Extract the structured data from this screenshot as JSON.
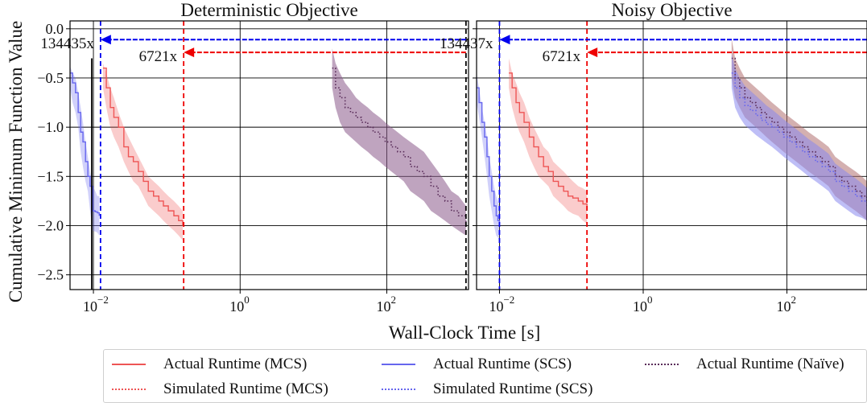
{
  "chart_data": [
    {
      "type": "line",
      "title": "Deterministic Objective",
      "xscale": "log",
      "xlim": [
        0.0048,
        1300
      ],
      "ylim": [
        -2.65,
        0.08
      ],
      "grid": true,
      "xticks": [
        {
          "base": "10",
          "exp": "−2",
          "value": 0.01
        },
        {
          "base": "10",
          "exp": "0",
          "value": 1
        },
        {
          "base": "10",
          "exp": "2",
          "value": 100
        }
      ],
      "yticks": [
        {
          "label": "0.0",
          "value": 0
        },
        {
          "label": "−0.5",
          "value": -0.5
        },
        {
          "label": "−1.0",
          "value": -1.0
        },
        {
          "label": "−1.5",
          "value": -1.5
        },
        {
          "label": "−2.0",
          "value": -2.0
        },
        {
          "label": "−2.5",
          "value": -2.5
        }
      ],
      "vlines": [
        {
          "x": 0.0095,
          "color": "#000000",
          "style": "solid",
          "ymin": -2.65,
          "ymax": -0.3
        },
        {
          "x": 0.0125,
          "color": "#0000ee",
          "style": "dashed"
        },
        {
          "x": 0.17,
          "color": "#ee0000",
          "style": "dashed"
        },
        {
          "x": 1200,
          "color": "#000000",
          "style": "dashed"
        }
      ],
      "arrows": [
        {
          "label": "134435x",
          "from": 1200,
          "to": 0.0125,
          "y": -0.11,
          "color": "#0000ee"
        },
        {
          "label": "6721x",
          "from": 1200,
          "to": 0.17,
          "y": -0.24,
          "color": "#ee0000"
        }
      ],
      "series": [
        {
          "name": "Actual Runtime (SCS)",
          "color": "#6666ee",
          "style": "solid",
          "x": [
            0.0048,
            0.0052,
            0.0057,
            0.0062,
            0.0067,
            0.0072,
            0.0078,
            0.0084,
            0.009,
            0.0098,
            0.0106,
            0.0113,
            0.012
          ],
          "y": [
            -0.45,
            -0.55,
            -0.65,
            -0.85,
            -1.05,
            -1.15,
            -1.35,
            -1.5,
            -1.6,
            -1.85,
            -1.86,
            -1.87,
            -1.9
          ],
          "lo": [
            -0.6,
            -0.75,
            -0.85,
            -1.0,
            -1.25,
            -1.4,
            -1.55,
            -1.65,
            -1.85,
            -2.05,
            -2.06,
            -2.07,
            -2.1
          ],
          "hi": [
            -0.38,
            -0.45,
            -0.5,
            -0.65,
            -0.8,
            -0.95,
            -1.15,
            -1.3,
            -1.45,
            -1.6,
            -1.65,
            -1.7,
            -1.7
          ]
        },
        {
          "name": "Actual Runtime (MCS)",
          "color": "#ee5555",
          "style": "solid",
          "x": [
            0.0135,
            0.015,
            0.017,
            0.019,
            0.022,
            0.026,
            0.03,
            0.035,
            0.041,
            0.048,
            0.056,
            0.066,
            0.078,
            0.09,
            0.105,
            0.125,
            0.145,
            0.165
          ],
          "y": [
            -0.4,
            -0.6,
            -0.8,
            -0.9,
            -1.0,
            -1.2,
            -1.3,
            -1.35,
            -1.45,
            -1.55,
            -1.65,
            -1.7,
            -1.75,
            -1.8,
            -1.85,
            -1.9,
            -1.95,
            -2.0
          ],
          "lo": [
            -0.6,
            -0.8,
            -1.0,
            -1.1,
            -1.2,
            -1.35,
            -1.45,
            -1.55,
            -1.6,
            -1.7,
            -1.8,
            -1.85,
            -1.9,
            -1.95,
            -2.0,
            -2.05,
            -2.1,
            -2.15
          ],
          "hi": [
            -0.35,
            -0.45,
            -0.6,
            -0.7,
            -0.85,
            -1.0,
            -1.1,
            -1.2,
            -1.3,
            -1.4,
            -1.5,
            -1.55,
            -1.6,
            -1.65,
            -1.7,
            -1.75,
            -1.8,
            -1.85
          ]
        },
        {
          "name": "Actual Runtime (Naïve)",
          "color": "#5a2d5a",
          "style": "dotted",
          "fill": "#8a5a8a",
          "x": [
            18,
            20,
            23,
            27,
            32,
            38,
            45,
            55,
            65,
            80,
            95,
            115,
            140,
            170,
            210,
            260,
            320,
            400,
            500,
            620,
            760,
            950,
            1200
          ],
          "y": [
            -0.4,
            -0.6,
            -0.7,
            -0.8,
            -0.85,
            -0.9,
            -0.95,
            -1.0,
            -1.05,
            -1.1,
            -1.15,
            -1.2,
            -1.25,
            -1.3,
            -1.4,
            -1.45,
            -1.5,
            -1.6,
            -1.7,
            -1.75,
            -1.85,
            -1.9,
            -2.0
          ],
          "lo": [
            -0.6,
            -0.8,
            -0.95,
            -1.05,
            -1.1,
            -1.15,
            -1.2,
            -1.25,
            -1.3,
            -1.35,
            -1.4,
            -1.45,
            -1.5,
            -1.55,
            -1.65,
            -1.7,
            -1.75,
            -1.85,
            -1.9,
            -1.95,
            -2.0,
            -2.05,
            -2.1
          ],
          "hi": [
            -0.2,
            -0.35,
            -0.45,
            -0.55,
            -0.62,
            -0.7,
            -0.75,
            -0.8,
            -0.85,
            -0.9,
            -0.95,
            -1.0,
            -1.05,
            -1.1,
            -1.15,
            -1.2,
            -1.25,
            -1.35,
            -1.45,
            -1.55,
            -1.65,
            -1.7,
            -1.8
          ]
        }
      ]
    },
    {
      "type": "line",
      "title": "Noisy Objective",
      "xscale": "log",
      "xlim": [
        0.0048,
        1300
      ],
      "ylim": [
        -2.65,
        0.08
      ],
      "grid": true,
      "xticks": [
        {
          "base": "10",
          "exp": "−2",
          "value": 0.01
        },
        {
          "base": "10",
          "exp": "0",
          "value": 1
        },
        {
          "base": "10",
          "exp": "2",
          "value": 100
        }
      ],
      "yticks": [
        {
          "label": "",
          "value": 0
        },
        {
          "label": "",
          "value": -0.5
        },
        {
          "label": "",
          "value": -1.0
        },
        {
          "label": "",
          "value": -1.5
        },
        {
          "label": "",
          "value": -2.0
        },
        {
          "label": "",
          "value": -2.5
        }
      ],
      "vlines": [
        {
          "x": 0.01,
          "color": "#0000ee",
          "style": "dashed"
        },
        {
          "x": 0.165,
          "color": "#ee0000",
          "style": "dashed"
        }
      ],
      "arrows": [
        {
          "label": "134437x",
          "from": 1300,
          "to": 0.01,
          "y": -0.11,
          "color": "#0000ee"
        },
        {
          "label": "6721x",
          "from": 1300,
          "to": 0.165,
          "y": -0.24,
          "color": "#ee0000"
        }
      ],
      "series": [
        {
          "name": "Actual Runtime (SCS)",
          "color": "#6666ee",
          "style": "solid",
          "x": [
            0.0048,
            0.0052,
            0.0057,
            0.0062,
            0.0067,
            0.0072,
            0.0078,
            0.0084,
            0.009,
            0.0095,
            0.01
          ],
          "y": [
            -0.6,
            -0.75,
            -0.95,
            -1.1,
            -1.3,
            -1.5,
            -1.65,
            -1.8,
            -1.9,
            -1.95,
            -1.98
          ],
          "lo": [
            -0.75,
            -0.9,
            -1.1,
            -1.3,
            -1.5,
            -1.7,
            -1.85,
            -2.0,
            -2.1,
            -2.12,
            -2.15
          ],
          "hi": [
            -0.45,
            -0.6,
            -0.8,
            -0.95,
            -1.1,
            -1.3,
            -1.45,
            -1.6,
            -1.7,
            -1.75,
            -1.8
          ]
        },
        {
          "name": "Actual Runtime (MCS)",
          "color": "#ee5555",
          "style": "solid",
          "x": [
            0.0135,
            0.015,
            0.017,
            0.019,
            0.022,
            0.026,
            0.03,
            0.035,
            0.041,
            0.048,
            0.056,
            0.066,
            0.078,
            0.09,
            0.105,
            0.125,
            0.145,
            0.165
          ],
          "y": [
            -0.45,
            -0.6,
            -0.75,
            -0.85,
            -0.95,
            -1.1,
            -1.2,
            -1.3,
            -1.4,
            -1.45,
            -1.55,
            -1.6,
            -1.65,
            -1.7,
            -1.72,
            -1.75,
            -1.78,
            -1.8
          ],
          "lo": [
            -0.6,
            -0.8,
            -0.95,
            -1.05,
            -1.15,
            -1.3,
            -1.4,
            -1.5,
            -1.55,
            -1.6,
            -1.7,
            -1.75,
            -1.8,
            -1.85,
            -1.88,
            -1.9,
            -1.95,
            -1.98
          ],
          "hi": [
            -0.3,
            -0.45,
            -0.55,
            -0.65,
            -0.75,
            -0.9,
            -1.0,
            -1.1,
            -1.2,
            -1.25,
            -1.35,
            -1.4,
            -1.45,
            -1.5,
            -1.55,
            -1.6,
            -1.62,
            -1.65
          ]
        },
        {
          "name": "Actual Runtime (Naïve)",
          "color": "#5a2d5a",
          "style": "dotted",
          "fill": "#b07070",
          "x": [
            17,
            19,
            22,
            26,
            31,
            37,
            44,
            52,
            62,
            75,
            90,
            110,
            135,
            165,
            200,
            250,
            310,
            380,
            470,
            580,
            720,
            900,
            1100,
            1300
          ],
          "y": [
            -0.3,
            -0.5,
            -0.6,
            -0.7,
            -0.75,
            -0.8,
            -0.85,
            -0.9,
            -0.95,
            -1.0,
            -1.05,
            -1.1,
            -1.15,
            -1.2,
            -1.25,
            -1.3,
            -1.35,
            -1.4,
            -1.5,
            -1.55,
            -1.6,
            -1.65,
            -1.7,
            -1.75
          ],
          "lo": [
            -0.5,
            -0.7,
            -0.8,
            -0.9,
            -0.95,
            -1.0,
            -1.05,
            -1.1,
            -1.15,
            -1.2,
            -1.25,
            -1.3,
            -1.35,
            -1.4,
            -1.45,
            -1.5,
            -1.55,
            -1.6,
            -1.7,
            -1.75,
            -1.8,
            -1.85,
            -1.9,
            -1.95
          ],
          "hi": [
            -0.1,
            -0.3,
            -0.4,
            -0.5,
            -0.55,
            -0.6,
            -0.65,
            -0.7,
            -0.75,
            -0.8,
            -0.85,
            -0.9,
            -0.95,
            -1.0,
            -1.05,
            -1.1,
            -1.15,
            -1.2,
            -1.3,
            -1.35,
            -1.4,
            -1.45,
            -1.5,
            -1.55
          ]
        },
        {
          "name": "Simulated Runtime (SCS)",
          "color": "#6666ee",
          "style": "dotted",
          "fill": "#8888ee",
          "x": [
            17,
            19,
            22,
            26,
            31,
            37,
            44,
            52,
            62,
            75,
            90,
            110,
            135,
            165,
            200,
            250,
            310,
            380,
            470,
            580,
            720,
            900,
            1100,
            1300
          ],
          "y": [
            -0.45,
            -0.6,
            -0.7,
            -0.78,
            -0.83,
            -0.88,
            -0.93,
            -0.97,
            -1.0,
            -1.05,
            -1.1,
            -1.15,
            -1.2,
            -1.25,
            -1.3,
            -1.35,
            -1.4,
            -1.45,
            -1.55,
            -1.6,
            -1.65,
            -1.7,
            -1.75,
            -1.8
          ],
          "lo": [
            -0.6,
            -0.8,
            -0.9,
            -0.98,
            -1.03,
            -1.08,
            -1.12,
            -1.16,
            -1.2,
            -1.25,
            -1.3,
            -1.35,
            -1.4,
            -1.45,
            -1.5,
            -1.55,
            -1.6,
            -1.65,
            -1.75,
            -1.8,
            -1.85,
            -1.9,
            -1.92,
            -1.95
          ],
          "hi": [
            -0.25,
            -0.4,
            -0.5,
            -0.58,
            -0.63,
            -0.68,
            -0.73,
            -0.78,
            -0.82,
            -0.87,
            -0.92,
            -0.97,
            -1.02,
            -1.07,
            -1.12,
            -1.17,
            -1.22,
            -1.27,
            -1.37,
            -1.42,
            -1.47,
            -1.52,
            -1.57,
            -1.62
          ]
        }
      ]
    }
  ],
  "shared": {
    "ylabel": "Cumulative Minimum Function Value",
    "xlabel": "Wall-Clock Time [s]"
  },
  "legend": {
    "placement": "bottom",
    "entries": [
      {
        "label": "Actual Runtime (MCS)",
        "color": "#ee5555",
        "style": "solid"
      },
      {
        "label": "Simulated Runtime (MCS)",
        "color": "#ee5555",
        "style": "dotted"
      },
      {
        "label": "Actual Runtime (SCS)",
        "color": "#6666ee",
        "style": "solid"
      },
      {
        "label": "Simulated Runtime (SCS)",
        "color": "#6666ee",
        "style": "dotted"
      },
      {
        "label": "Actual Runtime (Naïve)",
        "color": "#5a2d5a",
        "style": "dotted"
      }
    ]
  }
}
